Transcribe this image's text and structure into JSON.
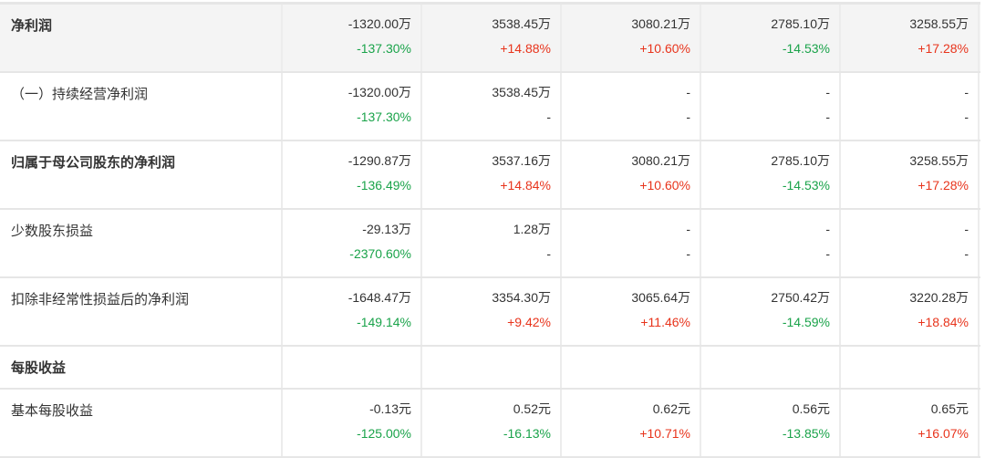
{
  "colors": {
    "up": "#e8341c",
    "down": "#1aa34a",
    "header_bg": "#f4f4f4"
  },
  "rows": [
    {
      "label": "净利润",
      "bold": true,
      "highlight": true,
      "cells": [
        [
          "-1320.00万",
          "-137.30%"
        ],
        [
          "3538.45万",
          "+14.88%"
        ],
        [
          "3080.21万",
          "+10.60%"
        ],
        [
          "2785.10万",
          "-14.53%"
        ],
        [
          "3258.55万",
          "+17.28%"
        ]
      ]
    },
    {
      "label": "（一）持续经营净利润",
      "bold": false,
      "cells": [
        [
          "-1320.00万",
          "-137.30%"
        ],
        [
          "3538.45万",
          "-"
        ],
        [
          "-",
          "-"
        ],
        [
          "-",
          "-"
        ],
        [
          "-",
          "-"
        ]
      ]
    },
    {
      "label": "归属于母公司股东的净利润",
      "bold": true,
      "cells": [
        [
          "-1290.87万",
          "-136.49%"
        ],
        [
          "3537.16万",
          "+14.84%"
        ],
        [
          "3080.21万",
          "+10.60%"
        ],
        [
          "2785.10万",
          "-14.53%"
        ],
        [
          "3258.55万",
          "+17.28%"
        ]
      ]
    },
    {
      "label": "少数股东损益",
      "bold": false,
      "cells": [
        [
          "-29.13万",
          "-2370.60%"
        ],
        [
          "1.28万",
          "-"
        ],
        [
          "-",
          "-"
        ],
        [
          "-",
          "-"
        ],
        [
          "-",
          "-"
        ]
      ]
    },
    {
      "label": "扣除非经常性损益后的净利润",
      "bold": false,
      "cells": [
        [
          "-1648.47万",
          "-149.14%"
        ],
        [
          "3354.30万",
          "+9.42%"
        ],
        [
          "3065.64万",
          "+11.46%"
        ],
        [
          "2750.42万",
          "-14.59%"
        ],
        [
          "3220.28万",
          "+18.84%"
        ]
      ]
    },
    {
      "label": "每股收益",
      "bold": true,
      "section": true,
      "cells": []
    },
    {
      "label": "基本每股收益",
      "bold": false,
      "cells": [
        [
          "-0.13元",
          "-125.00%"
        ],
        [
          "0.52元",
          "-16.13%"
        ],
        [
          "0.62元",
          "+10.71%"
        ],
        [
          "0.56元",
          "-13.85%"
        ],
        [
          "0.65元",
          "+16.07%"
        ]
      ]
    }
  ]
}
